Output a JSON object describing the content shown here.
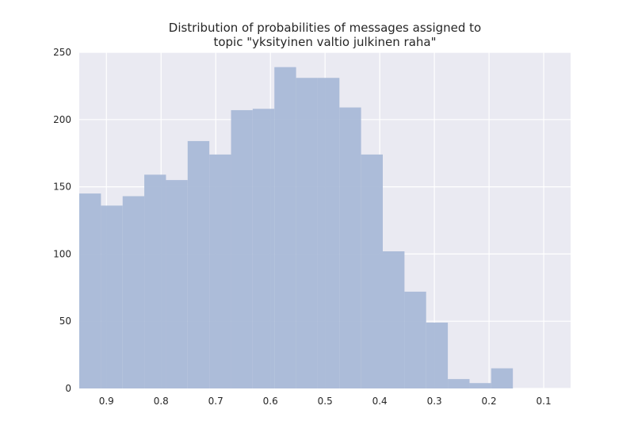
{
  "chart_data": {
    "type": "bar",
    "title_lines": [
      "Distribution of probabilities of messages assigned to",
      "topic \"yksityinen valtio julkinen raha\""
    ],
    "xlabel": "",
    "ylabel": "",
    "x_axis_reversed": true,
    "xlim": [
      0.9497,
      0.0508
    ],
    "ylim": [
      0,
      250
    ],
    "x_ticks": [
      {
        "value": 0.9,
        "label": "0.9"
      },
      {
        "value": 0.8,
        "label": "0.8"
      },
      {
        "value": 0.7,
        "label": "0.7"
      },
      {
        "value": 0.6,
        "label": "0.6"
      },
      {
        "value": 0.5,
        "label": "0.5"
      },
      {
        "value": 0.4,
        "label": "0.4"
      },
      {
        "value": 0.3,
        "label": "0.3"
      },
      {
        "value": 0.2,
        "label": "0.2"
      },
      {
        "value": 0.1,
        "label": "0.1"
      }
    ],
    "y_ticks": [
      {
        "value": 0,
        "label": "0"
      },
      {
        "value": 50,
        "label": "50"
      },
      {
        "value": 100,
        "label": "100"
      },
      {
        "value": 150,
        "label": "150"
      },
      {
        "value": 200,
        "label": "200"
      },
      {
        "value": 250,
        "label": "250"
      }
    ],
    "bin_edges": [
      0.9497,
      0.91,
      0.8703,
      0.8307,
      0.791,
      0.7514,
      0.7117,
      0.672,
      0.6324,
      0.5927,
      0.553,
      0.5134,
      0.4737,
      0.4341,
      0.3944,
      0.3547,
      0.3151,
      0.2754,
      0.2357,
      0.1961,
      0.1564
    ],
    "values": [
      145,
      136,
      143,
      159,
      155,
      184,
      174,
      207,
      208,
      239,
      231,
      231,
      209,
      174,
      102,
      72,
      49,
      7,
      4,
      15
    ],
    "grid": true,
    "colors": {
      "background": "#eaeaf2",
      "grid": "#ffffff",
      "bar": "#a9b9d7"
    }
  }
}
